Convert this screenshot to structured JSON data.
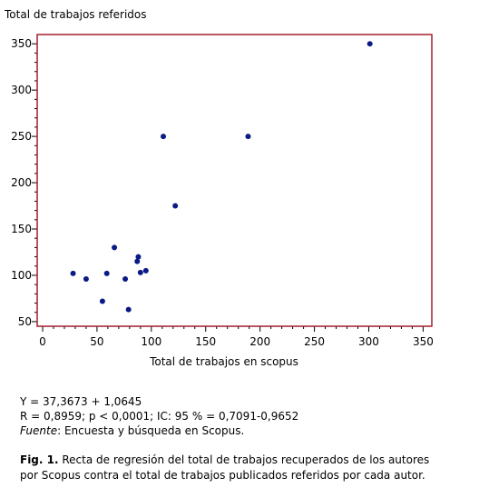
{
  "chart_data": {
    "type": "scatter",
    "ylabel": "Total de trabajos referidos",
    "xlabel": "Total de trabajos en scopus",
    "xlim": [
      -5,
      358
    ],
    "ylim": [
      45,
      360
    ],
    "x_ticks": [
      0,
      50,
      100,
      150,
      200,
      250,
      300,
      350
    ],
    "y_ticks": [
      50,
      100,
      150,
      200,
      250,
      300,
      350
    ],
    "grid": false,
    "frame_color": "#a31f2e",
    "point_color": "#0a1a86",
    "points": [
      {
        "x": 28,
        "y": 102
      },
      {
        "x": 40,
        "y": 96
      },
      {
        "x": 55,
        "y": 72
      },
      {
        "x": 59,
        "y": 102
      },
      {
        "x": 66,
        "y": 130
      },
      {
        "x": 76,
        "y": 96
      },
      {
        "x": 79,
        "y": 63
      },
      {
        "x": 87,
        "y": 115
      },
      {
        "x": 88,
        "y": 120
      },
      {
        "x": 90,
        "y": 103
      },
      {
        "x": 95,
        "y": 105
      },
      {
        "x": 111,
        "y": 250
      },
      {
        "x": 122,
        "y": 175
      },
      {
        "x": 189,
        "y": 250
      },
      {
        "x": 301,
        "y": 350
      }
    ]
  },
  "stats": {
    "equation": "Y = 37,3673  +  1,0645",
    "correlation": "R = 0,8959; p < 0,0001; IC: 95 % = 0,7091-0,9652",
    "source_label": "Fuente",
    "source_text": ": Encuesta y búsqueda en Scopus."
  },
  "caption": {
    "label": "Fig. 1.",
    "line1": " Recta de regresión del total de trabajos recuperados de los autores",
    "line2": "por Scopus contra el total de trabajos publicados referidos por cada autor."
  }
}
